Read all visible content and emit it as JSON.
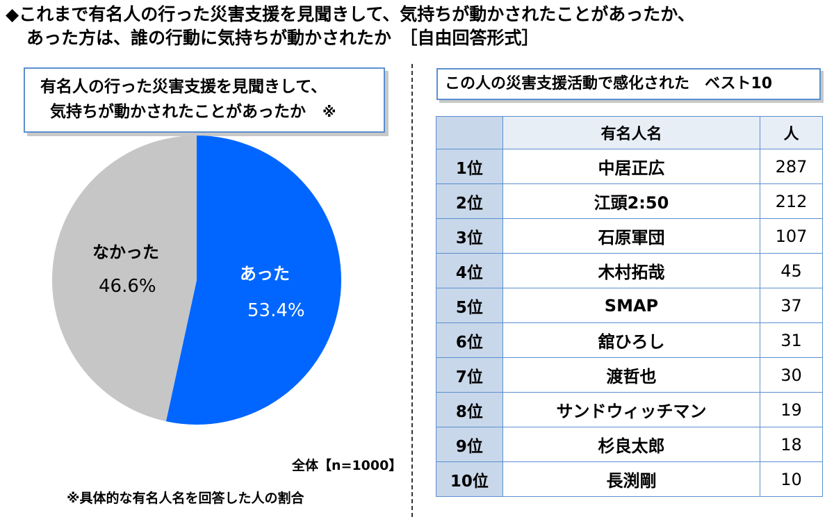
{
  "header": {
    "line1": "◆これまで有名人の行った災害支援を見聞きして、気持ちが動かされたことがあったか、",
    "line2": "あった方は、誰の行動に気持ちが動かされたか　［自由回答形式］"
  },
  "pie_title": {
    "line1": "有名人の行った災害支援を見聞きして、",
    "line2": "気持ちが動かされたことがあったか",
    "mark": "※"
  },
  "total_label": "全体【n=1000】",
  "footnote": "※具体的な有名人名を回答した人の割合",
  "ranking_title": "この人の災害支援活動で感化された　ベスト10",
  "colors": {
    "yes": "#0066ff",
    "no": "#c6c6c6",
    "border": "#5a8fd0"
  },
  "chart_data": [
    {
      "type": "pie",
      "title": "",
      "slices": [
        {
          "label": "あった",
          "value": 53.4,
          "display": "53.4%",
          "color": "#0066ff"
        },
        {
          "label": "なかった",
          "value": 46.6,
          "display": "46.6%",
          "color": "#c6c6c6"
        }
      ]
    },
    {
      "type": "table",
      "columns": [
        "",
        "有名人名",
        "人"
      ],
      "rows": [
        {
          "rank": "1位",
          "name": "中居正広",
          "count": "287"
        },
        {
          "rank": "2位",
          "name": "江頭2:50",
          "count": "212"
        },
        {
          "rank": "3位",
          "name": "石原軍団",
          "count": "107"
        },
        {
          "rank": "4位",
          "name": "木村拓哉",
          "count": "45"
        },
        {
          "rank": "5位",
          "name": "SMAP",
          "count": "37"
        },
        {
          "rank": "6位",
          "name": "舘ひろし",
          "count": "31"
        },
        {
          "rank": "7位",
          "name": "渡哲也",
          "count": "30"
        },
        {
          "rank": "8位",
          "name": "サンドウィッチマン",
          "count": "19"
        },
        {
          "rank": "9位",
          "name": "杉良太郎",
          "count": "18"
        },
        {
          "rank": "10位",
          "name": "長渕剛",
          "count": "10"
        }
      ]
    }
  ]
}
